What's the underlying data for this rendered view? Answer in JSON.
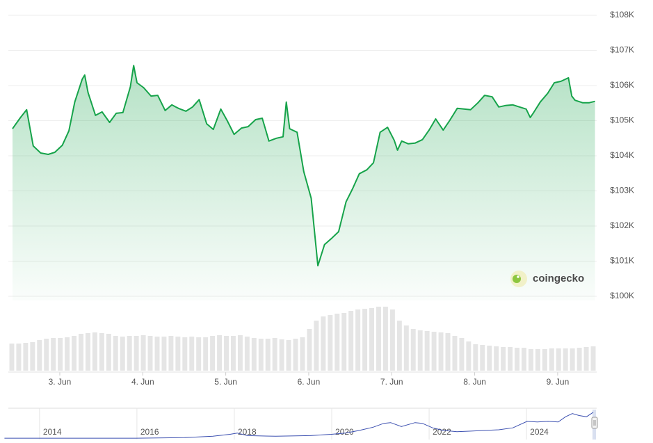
{
  "chart_data": {
    "type": "line",
    "color": "#16a34a",
    "fill": "#16a34a",
    "grid": true,
    "watermark": "coingecko",
    "x": [
      2.43,
      2.52,
      2.6,
      2.68,
      2.77,
      2.86,
      2.94,
      3.03,
      3.11,
      3.18,
      3.27,
      3.3,
      3.34,
      3.43,
      3.51,
      3.6,
      3.68,
      3.76,
      3.85,
      3.89,
      3.93,
      4.01,
      4.1,
      4.18,
      4.27,
      4.35,
      4.43,
      4.52,
      4.6,
      4.68,
      4.77,
      4.85,
      4.94,
      5.02,
      5.1,
      5.19,
      5.27,
      5.36,
      5.44,
      5.52,
      5.61,
      5.69,
      5.73,
      5.77,
      5.86,
      5.94,
      6.03,
      6.11,
      6.19,
      6.28,
      6.36,
      6.45,
      6.53,
      6.61,
      6.7,
      6.78,
      6.86,
      6.95,
      7.03,
      7.07,
      7.12,
      7.2,
      7.28,
      7.37,
      7.45,
      7.53,
      7.62,
      7.7,
      7.79,
      7.87,
      7.95,
      8.04,
      8.12,
      8.21,
      8.29,
      8.37,
      8.46,
      8.54,
      8.62,
      8.67,
      8.71,
      8.79,
      8.88,
      8.96,
      9.04,
      9.13,
      9.17,
      9.21,
      9.3,
      9.38,
      9.45
    ],
    "values": [
      104770,
      105070,
      105310,
      104280,
      104080,
      104040,
      104100,
      104300,
      104710,
      105530,
      106180,
      106300,
      105800,
      105150,
      105250,
      104950,
      105210,
      105230,
      105960,
      106570,
      106080,
      105940,
      105700,
      105720,
      105290,
      105450,
      105350,
      105270,
      105390,
      105600,
      104910,
      104750,
      105330,
      104990,
      104610,
      104790,
      104830,
      105030,
      105070,
      104420,
      104500,
      104540,
      105530,
      104770,
      104670,
      103550,
      102790,
      100870,
      101470,
      101660,
      101840,
      102690,
      103070,
      103490,
      103600,
      103800,
      104670,
      104810,
      104440,
      104160,
      104420,
      104340,
      104360,
      104460,
      104730,
      105050,
      104730,
      105010,
      105350,
      105330,
      105310,
      105510,
      105720,
      105680,
      105390,
      105430,
      105450,
      105390,
      105330,
      105090,
      105230,
      105530,
      105780,
      106080,
      106120,
      106220,
      105700,
      105580,
      105510,
      105510,
      105550
    ],
    "xlim": [
      2.38,
      9.47
    ],
    "xticks": [
      {
        "value": 3,
        "label": "3. Jun"
      },
      {
        "value": 4,
        "label": "4. Jun"
      },
      {
        "value": 5,
        "label": "5. Jun"
      },
      {
        "value": 6,
        "label": "6. Jun"
      },
      {
        "value": 7,
        "label": "7. Jun"
      },
      {
        "value": 8,
        "label": "8. Jun"
      },
      {
        "value": 9,
        "label": "9. Jun"
      }
    ],
    "ylim": [
      100000,
      108000
    ],
    "yticks": [
      {
        "value": 100000,
        "label": "$100K"
      },
      {
        "value": 101000,
        "label": "$101K"
      },
      {
        "value": 102000,
        "label": "$102K"
      },
      {
        "value": 103000,
        "label": "$103K"
      },
      {
        "value": 104000,
        "label": "$104K"
      },
      {
        "value": 105000,
        "label": "$105K"
      },
      {
        "value": 106000,
        "label": "$106K"
      },
      {
        "value": 107000,
        "label": "$107K"
      },
      {
        "value": 108000,
        "label": "$108K"
      }
    ],
    "volume": {
      "color": "#e5e5e5",
      "vlim": [
        0,
        100
      ],
      "values": [
        39,
        39,
        40,
        41,
        44,
        46,
        47,
        47,
        48,
        50,
        53,
        54,
        55,
        54,
        53,
        50,
        49,
        50,
        50,
        51,
        50,
        49,
        49,
        50,
        49,
        48,
        49,
        48,
        48,
        50,
        51,
        50,
        50,
        51,
        49,
        47,
        46,
        46,
        47,
        45,
        44,
        46,
        48,
        60,
        72,
        78,
        80,
        82,
        83,
        86,
        88,
        89,
        90,
        92,
        92,
        88,
        72,
        65,
        60,
        58,
        57,
        56,
        55,
        54,
        50,
        47,
        42,
        38,
        37,
        36,
        35,
        34,
        34,
        33,
        33,
        31,
        31,
        31,
        32,
        32,
        32,
        32,
        33,
        34,
        35
      ]
    },
    "navigator": {
      "color": "#3b4fb0",
      "xlim": [
        2013.36,
        2025.44
      ],
      "ylim": [
        0,
        45
      ],
      "xticks": [
        2014,
        2016,
        2018,
        2020,
        2022,
        2024
      ],
      "x": [
        2013.28,
        2015.98,
        2016.98,
        2017.56,
        2017.91,
        2018.06,
        2018.27,
        2018.85,
        2019.56,
        2019.99,
        2020.28,
        2020.57,
        2020.85,
        2021.07,
        2021.21,
        2021.43,
        2021.71,
        2021.86,
        2022.07,
        2022.29,
        2022.57,
        2022.86,
        2023.15,
        2023.43,
        2023.72,
        2024.01,
        2024.22,
        2024.44,
        2024.65,
        2024.8,
        2024.94,
        2025.08,
        2025.23,
        2025.37
      ],
      "values": [
        2,
        2,
        3,
        5,
        8,
        10,
        6,
        5,
        6,
        8,
        10,
        14,
        19,
        25,
        26,
        20,
        26,
        25,
        18,
        14,
        12,
        13,
        14,
        15,
        18,
        28,
        27,
        28,
        27,
        35,
        40,
        37,
        35,
        42
      ]
    }
  }
}
